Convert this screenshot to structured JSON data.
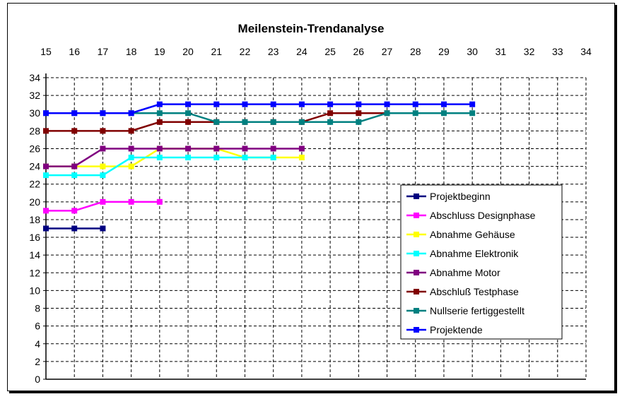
{
  "chart_data": {
    "type": "line",
    "title": "Meilenstein-Trendanalyse",
    "xlabel": "",
    "ylabel": "",
    "x_ticks": [
      15,
      16,
      17,
      18,
      19,
      20,
      21,
      22,
      23,
      24,
      25,
      26,
      27,
      28,
      29,
      30,
      31,
      32,
      33,
      34
    ],
    "xlim": [
      15,
      34
    ],
    "y_ticks": [
      0,
      2,
      4,
      6,
      8,
      10,
      12,
      14,
      16,
      18,
      20,
      22,
      24,
      26,
      28,
      30,
      32,
      34
    ],
    "ylim": [
      0,
      34
    ],
    "grid": true,
    "legend_position": "right-middle",
    "series": [
      {
        "name": "Projektbeginn",
        "color": "#000080",
        "x": [
          15,
          16,
          17
        ],
        "values": [
          17,
          17,
          17
        ]
      },
      {
        "name": "Abschluss Designphase",
        "color": "#FF00FF",
        "x": [
          15,
          16,
          17,
          18,
          19
        ],
        "values": [
          19,
          19,
          20,
          20,
          20
        ]
      },
      {
        "name": "Abnahme Gehäuse",
        "color": "#FFFF00",
        "x": [
          15,
          16,
          17,
          18,
          19,
          20,
          21,
          22,
          23,
          24
        ],
        "values": [
          24,
          24,
          24,
          24,
          26,
          26,
          26,
          25,
          25,
          25
        ]
      },
      {
        "name": "Abnahme Elektronik",
        "color": "#00FFFF",
        "x": [
          15,
          16,
          17,
          18,
          19,
          20,
          21,
          22,
          23
        ],
        "values": [
          23,
          23,
          23,
          25,
          25,
          25,
          25,
          25,
          25
        ]
      },
      {
        "name": "Abnahme Motor",
        "color": "#800080",
        "x": [
          15,
          16,
          17,
          18,
          19,
          20,
          21,
          22,
          23,
          24
        ],
        "values": [
          24,
          24,
          26,
          26,
          26,
          26,
          26,
          26,
          26,
          26
        ]
      },
      {
        "name": "Abschluß Testphase",
        "color": "#800000",
        "x": [
          15,
          16,
          17,
          18,
          19,
          20,
          21,
          22,
          23,
          24,
          25,
          26,
          27
        ],
        "values": [
          28,
          28,
          28,
          28,
          29,
          29,
          29,
          29,
          29,
          29,
          30,
          30,
          30
        ]
      },
      {
        "name": "Nullserie fertiggestellt",
        "color": "#008080",
        "x": [
          15,
          16,
          17,
          18,
          19,
          20,
          21,
          22,
          23,
          24,
          25,
          26,
          27,
          28,
          29,
          30
        ],
        "values": [
          30,
          30,
          30,
          30,
          30,
          30,
          29,
          29,
          29,
          29,
          29,
          29,
          30,
          30,
          30,
          30
        ]
      },
      {
        "name": "Projektende",
        "color": "#0000FF",
        "x": [
          15,
          16,
          17,
          18,
          19,
          20,
          21,
          22,
          23,
          24,
          25,
          26,
          27,
          28,
          29,
          30
        ],
        "values": [
          30,
          30,
          30,
          30,
          31,
          31,
          31,
          31,
          31,
          31,
          31,
          31,
          31,
          31,
          31,
          31
        ]
      }
    ]
  }
}
